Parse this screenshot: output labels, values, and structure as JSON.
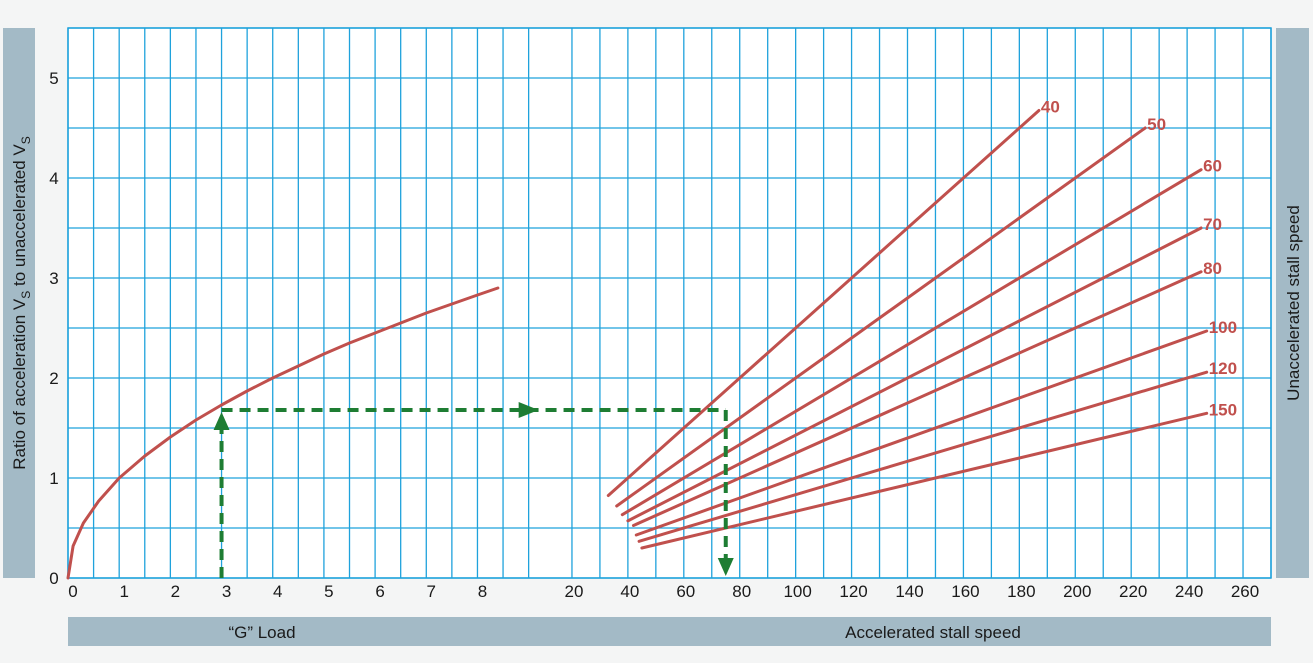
{
  "chart_data": {
    "type": "line",
    "colors": {
      "curve": "#c0504d",
      "grid": "#1fa2dc",
      "guide": "#1e7d33",
      "band": "#a3bac6"
    },
    "y_axis": {
      "label_main": "Ratio of acceleration V",
      "label_sub1": "S",
      "label_mid": " to unaccelerated V",
      "label_sub2": "S",
      "range": [
        0,
        5.5
      ],
      "ticks": [
        "0",
        "1",
        "2",
        "3",
        "4",
        "5"
      ]
    },
    "right_label": "Unaccelerated stall speed",
    "load_panel": {
      "xlabel": "“G” Load",
      "x_range": [
        0,
        9.3
      ],
      "ticks": [
        "0",
        "1",
        "2",
        "3",
        "4",
        "5",
        "6",
        "7",
        "8"
      ],
      "curve": {
        "x": [
          0,
          0.1,
          0.3,
          0.6,
          1,
          1.5,
          2,
          2.5,
          3,
          3.5,
          4,
          4.5,
          5,
          5.5,
          6,
          6.5,
          7,
          7.5,
          8,
          8.4
        ],
        "y": [
          0,
          0.32,
          0.55,
          0.77,
          1.0,
          1.22,
          1.41,
          1.58,
          1.73,
          1.87,
          2.0,
          2.12,
          2.24,
          2.35,
          2.45,
          2.55,
          2.65,
          2.74,
          2.83,
          2.9
        ]
      }
    },
    "speed_panel": {
      "xlabel": "Accelerated stall speed",
      "x_range": [
        10,
        270
      ],
      "ticks": [
        "20",
        "40",
        "60",
        "80",
        "100",
        "120",
        "140",
        "160",
        "180",
        "200",
        "220",
        "240",
        "260"
      ],
      "series": [
        {
          "name": "40",
          "x0": 33,
          "x1": 187
        },
        {
          "name": "50",
          "x0": 36,
          "x1": 225
        },
        {
          "name": "60",
          "x0": 38,
          "x1": 245
        },
        {
          "name": "70",
          "x0": 40,
          "x1": 245
        },
        {
          "name": "80",
          "x0": 42,
          "x1": 245
        },
        {
          "name": "100",
          "x0": 43,
          "x1": 247
        },
        {
          "name": "120",
          "x0": 44,
          "x1": 247
        },
        {
          "name": "150",
          "x0": 45,
          "x1": 247
        }
      ]
    },
    "example": {
      "g_load": 3,
      "ratio": 1.68,
      "accelerated_speed": 75
    }
  }
}
